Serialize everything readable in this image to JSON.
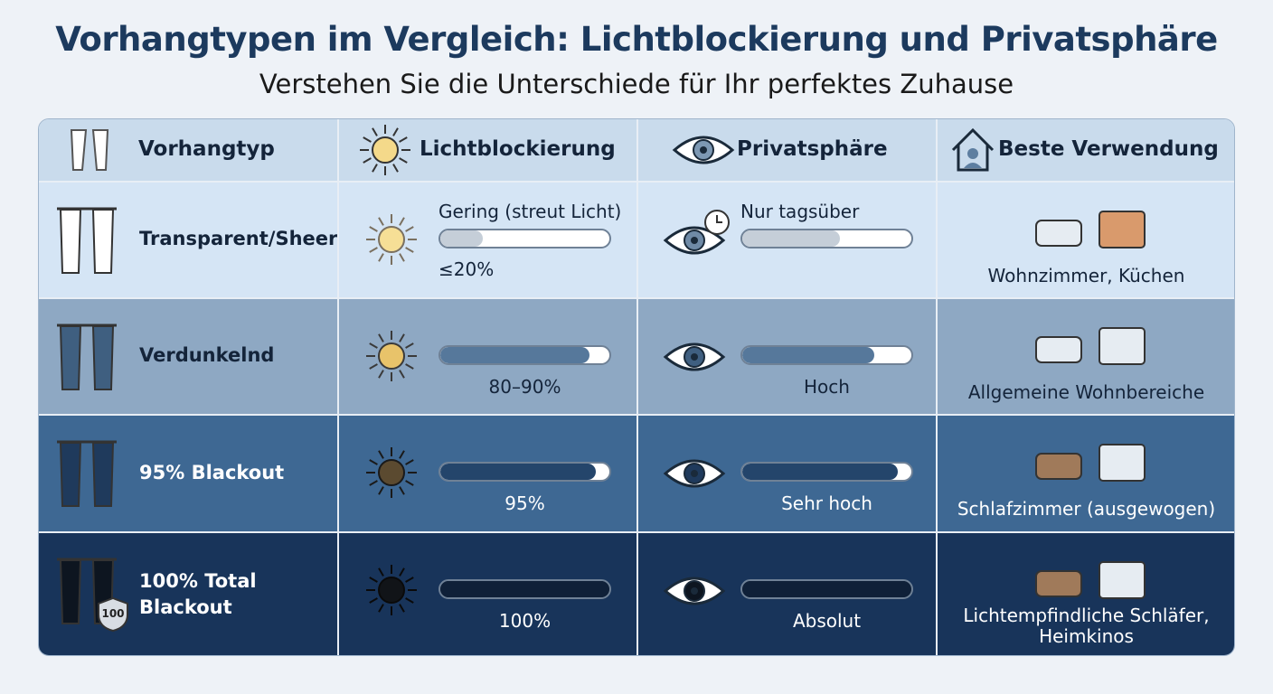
{
  "header": {
    "title": "Vorhangtypen im Vergleich: Lichtblockierung und Privatsphäre",
    "subtitle": "Verstehen Sie die Unterschiede für Ihr perfektes Zuhause"
  },
  "table": {
    "columns": [
      "Vorhangtyp",
      "Lichtblockierung",
      "Privatsphäre",
      "Beste Verwendung"
    ],
    "rows": [
      {
        "type": "Transparent/Sheer",
        "light_label": "Gering (streut Licht)",
        "light": "≤20%",
        "privacy": "Nur tagsüber",
        "use": "Wohnzimmer, Küchen"
      },
      {
        "type": "Verdunkelnd",
        "light": "80–90%",
        "privacy": "Hoch",
        "use": "Allgemeine Wohnbereiche"
      },
      {
        "type": "95% Blackout",
        "light": "95%",
        "privacy": "Sehr hoch",
        "use": "Schlafzimmer (ausgewogen)"
      },
      {
        "type": "100% Total Blackout",
        "badge": "100",
        "light": "100%",
        "privacy": "Absolut",
        "use": "Lichtempfindliche Schläfer, Heimkinos"
      }
    ]
  }
}
